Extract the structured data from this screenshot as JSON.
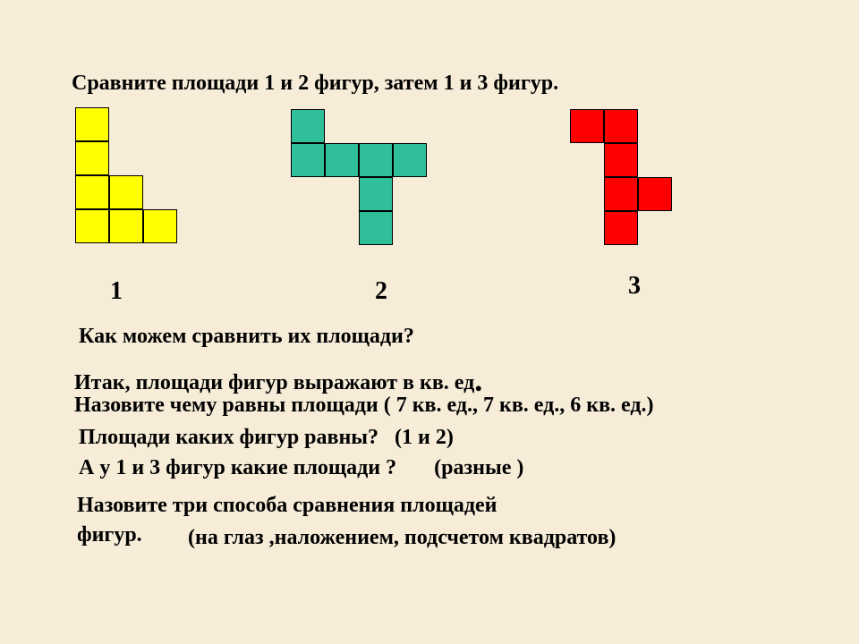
{
  "background_color": "#f6ecd8",
  "text_color": "#000000",
  "font_size_body": 24,
  "font_size_dot": 36,
  "font_size_label": 28,
  "text": {
    "title": "Сравните площади 1 и 2 фигур, затем 1 и 3 фигур.",
    "q1": "Как можем сравнить их площади?",
    "stmt1a": "Итак, площади фигур выражают в кв. ед",
    "stmt1dot": ".",
    "stmt2": "Назовите чему равны площади ( 7 кв. ед., 7 кв. ед., 6 кв. ед.)",
    "q2": "Площади каких фигур равны?",
    "q2ans": "(1 и 2)",
    "q3": "А у 1 и 3 фигур какие площади ?",
    "q3ans": "(разные )",
    "stmt3a": "Назовите три способа сравнения площадей",
    "stmt3b": "фигур.",
    "stmt3c": "(на глаз ,наложением, подсчетом квадратов)"
  },
  "figures": [
    {
      "label": "1",
      "cell_size": 38,
      "fill": "#ffff00",
      "stroke": "#000000",
      "stroke_width": 1,
      "cells": [
        [
          0,
          0
        ],
        [
          0,
          1
        ],
        [
          0,
          2
        ],
        [
          1,
          2
        ],
        [
          0,
          3
        ],
        [
          1,
          3
        ],
        [
          2,
          3
        ]
      ]
    },
    {
      "label": "2",
      "cell_size": 38,
      "fill": "#2fbf9b",
      "stroke": "#000000",
      "stroke_width": 1,
      "cells": [
        [
          0,
          0
        ],
        [
          0,
          1
        ],
        [
          1,
          1
        ],
        [
          2,
          1
        ],
        [
          3,
          1
        ],
        [
          2,
          2
        ],
        [
          2,
          3
        ]
      ]
    },
    {
      "label": "3",
      "cell_size": 38,
      "fill": "#ff0000",
      "stroke": "#000000",
      "stroke_width": 1,
      "cells": [
        [
          0,
          0
        ],
        [
          1,
          0
        ],
        [
          1,
          1
        ],
        [
          1,
          2
        ],
        [
          2,
          2
        ],
        [
          1,
          3
        ]
      ]
    }
  ]
}
